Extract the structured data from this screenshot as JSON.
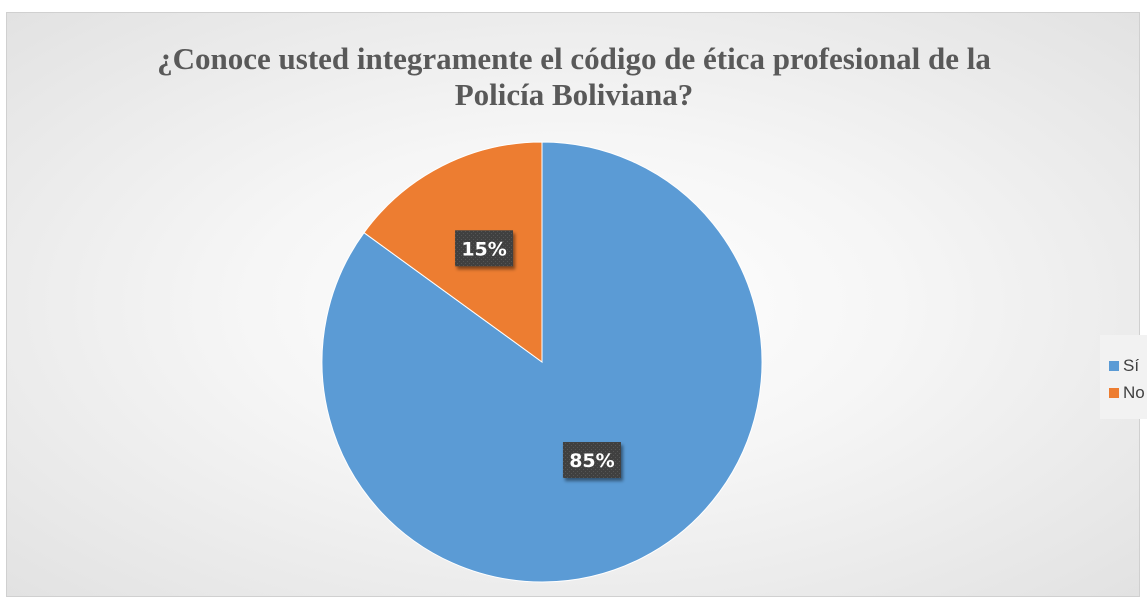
{
  "chart_data": {
    "type": "pie",
    "title_lines": [
      "¿Conoce usted integramente el código de ética profesional de la",
      "Policía Boliviana?"
    ],
    "categories": [
      "Sí",
      "No"
    ],
    "values": [
      85,
      15
    ],
    "data_labels": [
      "85%",
      "15%"
    ],
    "colors": [
      "#5b9bd5",
      "#ed7d31"
    ],
    "legend_position": "right"
  }
}
